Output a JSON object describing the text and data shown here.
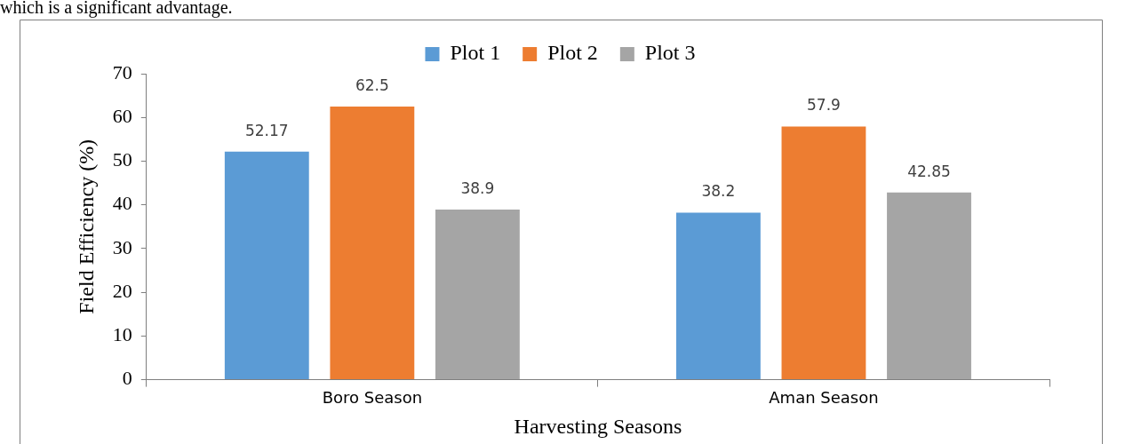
{
  "chart_data": {
    "type": "bar",
    "xlabel": "Harvesting Seasons",
    "ylabel": "Field Efficiency (%)",
    "categories": [
      "Boro Season",
      "Aman Season"
    ],
    "series": [
      {
        "name": "Plot 1",
        "color": "#5b9bd5",
        "values": [
          52.17,
          38.2
        ]
      },
      {
        "name": "Plot 2",
        "color": "#ed7d31",
        "values": [
          62.5,
          57.9
        ]
      },
      {
        "name": "Plot 3",
        "color": "#a5a5a5",
        "values": [
          38.9,
          42.85
        ]
      }
    ],
    "ylim": [
      0,
      70
    ],
    "yticks": [
      0,
      10,
      20,
      30,
      40,
      50,
      60,
      70
    ],
    "grid": false,
    "legend": "top",
    "data_labels": true,
    "annotations": [
      "which is a significant advantage."
    ]
  }
}
